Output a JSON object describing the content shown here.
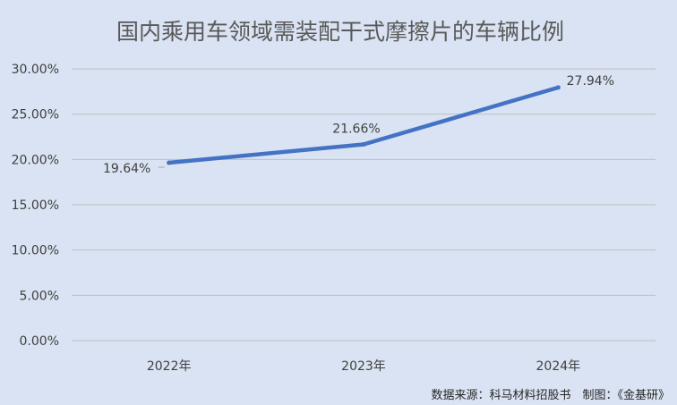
{
  "chart_data": {
    "type": "line",
    "title": "国内乘用车领域需装配干式摩擦片的车辆比例",
    "categories": [
      "2022年",
      "2023年",
      "2024年"
    ],
    "series": [
      {
        "values": [
          19.64,
          21.66,
          27.94
        ],
        "labels": [
          "19.64%",
          "21.66%",
          "27.94%"
        ],
        "color": "#4472c4"
      }
    ],
    "ylim": [
      0,
      30
    ],
    "y_ticks": [
      0,
      5,
      10,
      15,
      20,
      25,
      30
    ],
    "y_tick_labels": [
      "0.00%",
      "5.00%",
      "10.00%",
      "15.00%",
      "20.00%",
      "25.00%",
      "30.00%"
    ],
    "grid": true,
    "xlabel": "",
    "ylabel": "",
    "source": "数据来源：科马材料招股书　制图：《金基研》"
  },
  "colors": {
    "background": "#dae3f3",
    "gridline": "#bfbfbf",
    "line": "#4472c4"
  }
}
